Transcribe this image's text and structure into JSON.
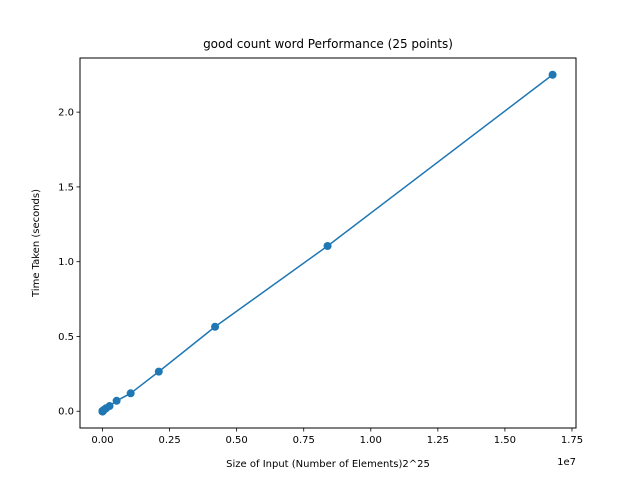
{
  "chart_data": {
    "type": "line",
    "title": "good count word Performance (25 points)",
    "xlabel": "Size of Input (Number of Elements)2^25",
    "ylabel": "Time Taken (seconds)",
    "x_offset_text": "1e7",
    "x_scale": 10000000,
    "xlim": [
      -0.084,
      1.765
    ],
    "ylim": [
      -0.112,
      2.362
    ],
    "x_ticks": [
      0.0,
      0.25,
      0.5,
      0.75,
      1.0,
      1.25,
      1.5,
      1.75
    ],
    "x_tick_labels": [
      "0.00",
      "0.25",
      "0.50",
      "0.75",
      "1.00",
      "1.25",
      "1.50",
      "1.75"
    ],
    "y_ticks": [
      0.0,
      0.5,
      1.0,
      1.5,
      2.0
    ],
    "y_tick_labels": [
      "0.0",
      "0.5",
      "1.0",
      "1.5",
      "2.0"
    ],
    "grid": false,
    "series": [
      {
        "color": "#1f77b4",
        "marker": "circle",
        "x": [
          1,
          2,
          4,
          8,
          16,
          32,
          64,
          128,
          256,
          512,
          1024,
          2048,
          4096,
          8192,
          16384,
          32768,
          65536,
          131072,
          262144,
          524288,
          1048576,
          2097152,
          4194304,
          8388608,
          16777216
        ],
        "y": [
          0.0,
          0.0,
          0.0,
          0.0,
          0.0,
          0.0,
          0.0,
          0.0,
          0.0,
          0.0,
          0.0,
          0.001,
          0.001,
          0.002,
          0.003,
          0.006,
          0.011,
          0.02,
          0.035,
          0.07,
          0.12,
          0.265,
          0.565,
          1.105,
          2.25
        ]
      }
    ]
  }
}
